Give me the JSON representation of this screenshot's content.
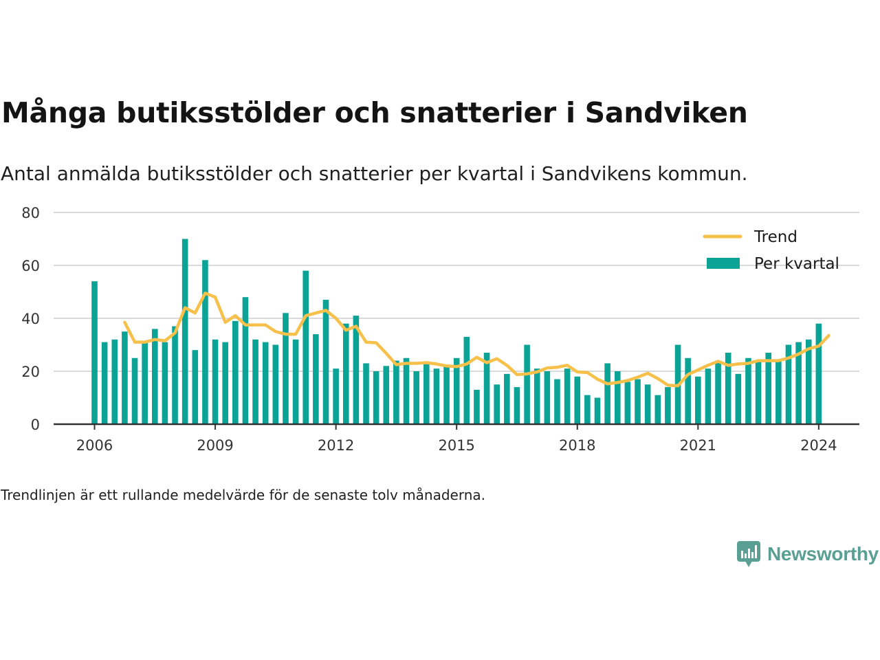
{
  "header": {
    "title": "Många butiksstölder och snatterier i Sandviken",
    "subtitle": "Antal anmälda butiksstölder och snatterier per kvartal i Sandvikens kommun."
  },
  "footnote": "Trendlinjen är ett rullande medelvärde för de senaste tolv månaderna.",
  "brand": {
    "name": "Newsworthy",
    "color": "#5a9f93"
  },
  "chart_data": {
    "type": "bar",
    "x_start": "2006 Q1",
    "x_ticks": [
      "2006",
      "2009",
      "2012",
      "2015",
      "2018",
      "2021",
      "2024"
    ],
    "ylim": [
      0,
      80
    ],
    "y_ticks": [
      0,
      20,
      40,
      60,
      80
    ],
    "grid": true,
    "legend_position": "top-right",
    "series": [
      {
        "name": "Per kvartal",
        "kind": "bar",
        "color": "#0aa396",
        "values": [
          54,
          31,
          32,
          35,
          25,
          31,
          36,
          31,
          37,
          70,
          28,
          62,
          32,
          31,
          39,
          48,
          32,
          31,
          30,
          42,
          32,
          58,
          34,
          47,
          21,
          38,
          41,
          23,
          20,
          22,
          24,
          25,
          20,
          23,
          21,
          22,
          25,
          33,
          13,
          27,
          15,
          19,
          14,
          30,
          21,
          20,
          17,
          21,
          18,
          11,
          10,
          23,
          20,
          16,
          17,
          15,
          11,
          14,
          30,
          25,
          18,
          21,
          24,
          27,
          19,
          25,
          24,
          27,
          24,
          30,
          31,
          32,
          38
        ]
      },
      {
        "name": "Trend",
        "kind": "line",
        "color": "#f7c04a",
        "start_index": 3,
        "values": [
          38.5,
          31,
          31,
          32,
          31.5,
          34.5,
          44,
          42,
          49.5,
          48,
          38.5,
          41,
          37.5,
          37.5,
          37.5,
          35,
          34,
          34,
          41,
          42,
          43,
          40,
          35.5,
          37,
          31,
          30.75,
          26.75,
          22.5,
          23,
          23,
          23.25,
          22.75,
          22,
          21.75,
          22.75,
          25.25,
          23.25,
          24.75,
          22.25,
          18.75,
          19,
          19.75,
          21.25,
          21.5,
          22.25,
          19.75,
          19.5,
          17,
          15.25,
          15.75,
          16.5,
          17.75,
          19.25,
          17.25,
          14.75,
          14.5,
          18.75,
          20.5,
          22.25,
          23.75,
          22.25,
          22.75,
          23,
          24,
          24,
          24,
          25,
          26.5,
          28.5,
          29.5,
          33.5
        ]
      }
    ],
    "colors": {
      "grid": "#dadada",
      "axis": "#333333",
      "tick_text": "#333333"
    }
  }
}
